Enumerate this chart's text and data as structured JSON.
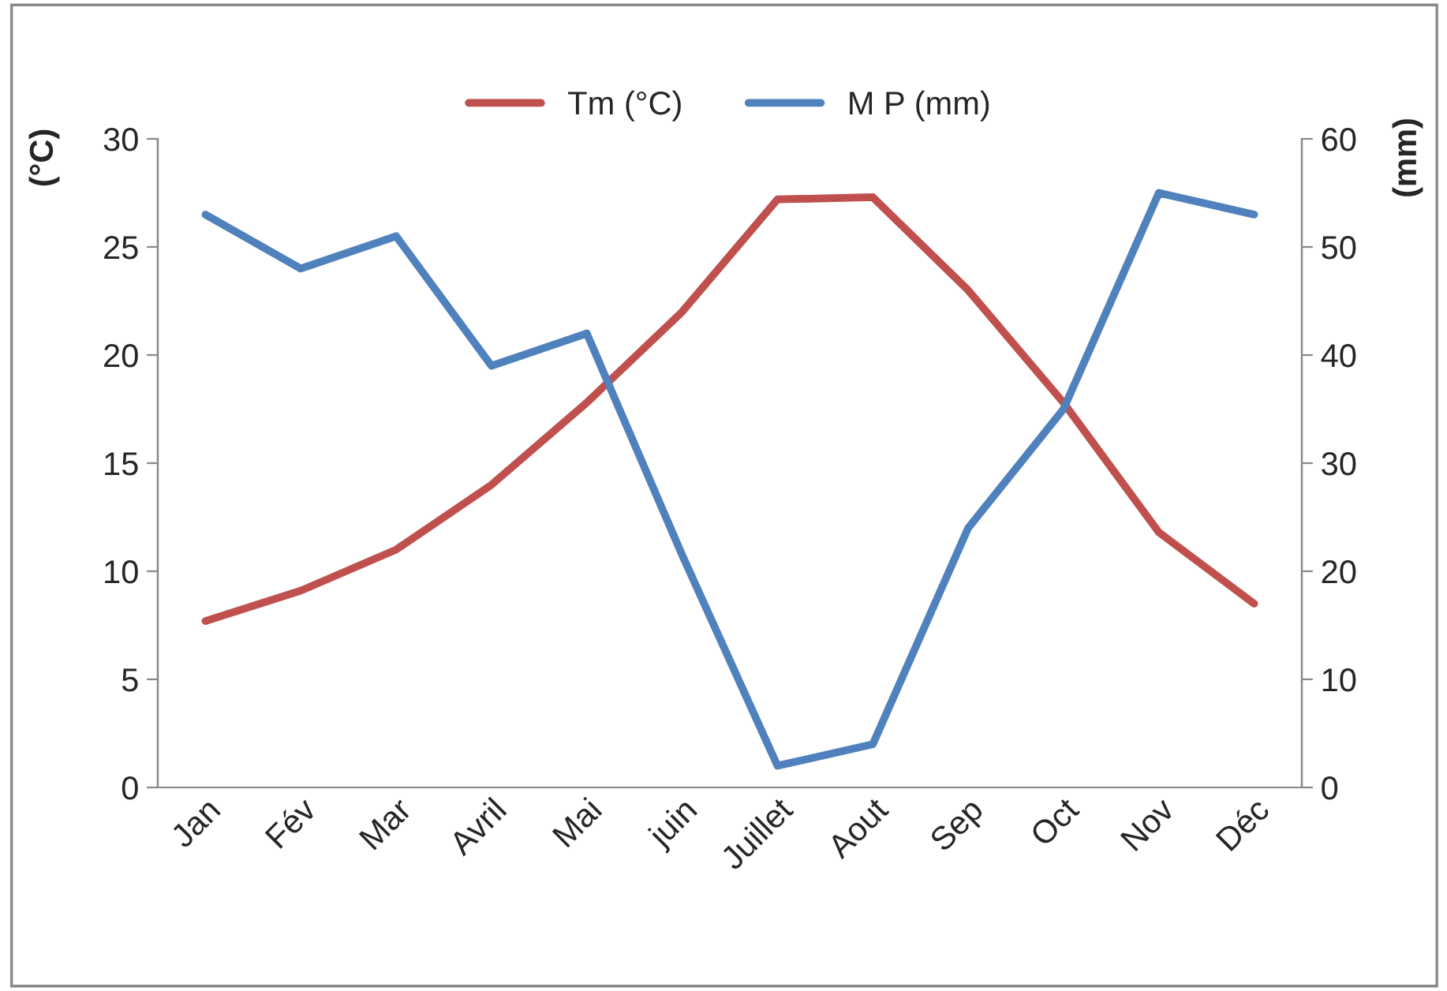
{
  "chart_data": {
    "type": "line",
    "categories": [
      "Jan",
      "Fév",
      "Mar",
      "Avril",
      "Mai",
      "juin",
      "Juillet",
      "Aout",
      "Sep",
      "Oct",
      "Nov",
      "Déc"
    ],
    "series": [
      {
        "name": "Tm (°C)",
        "color": "#c0504d",
        "values": [
          7.7,
          9.1,
          11.0,
          14.0,
          17.8,
          22.0,
          27.2,
          27.3,
          23.0,
          17.8,
          11.8,
          8.5
        ]
      },
      {
        "name": "M P (mm)",
        "color": "#4f81bd",
        "axis": "y2",
        "values": [
          53,
          48,
          51,
          39,
          42,
          21.5,
          2,
          4,
          24,
          35,
          55,
          53
        ]
      }
    ],
    "ylabel": "(°C)",
    "y2label": "(mm)",
    "ylim": [
      0,
      30
    ],
    "yticks": [
      0,
      5,
      10,
      15,
      20,
      25,
      30
    ],
    "y2lim": [
      0,
      60
    ],
    "y2ticks": [
      0,
      10,
      20,
      30,
      40,
      50,
      60
    ],
    "grid": false,
    "legend": "top",
    "marker": "none",
    "line_style": "solid"
  }
}
